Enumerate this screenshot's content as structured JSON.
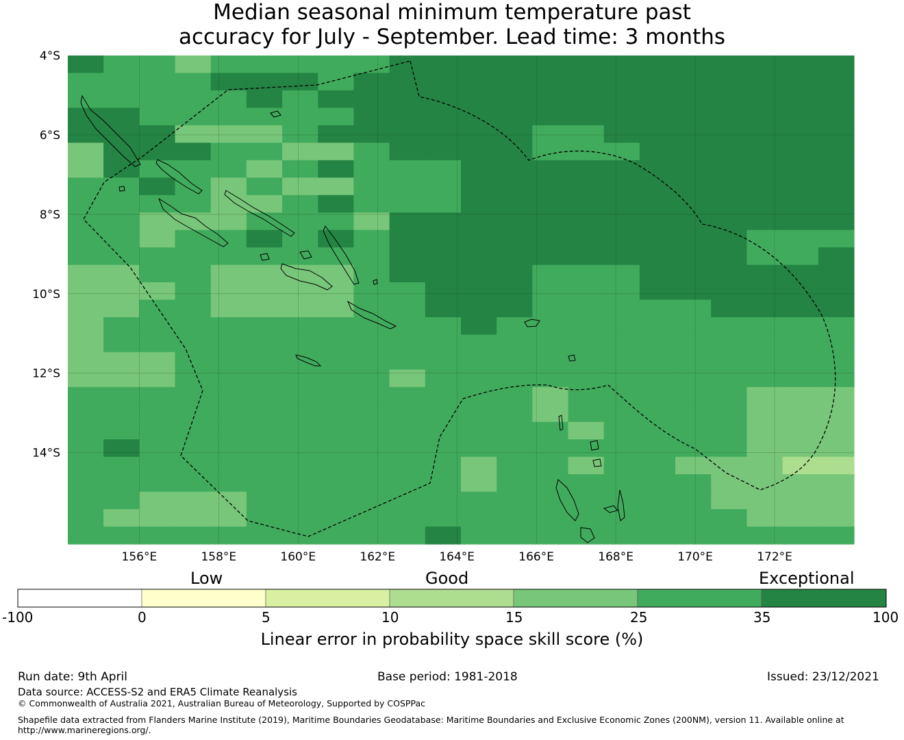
{
  "title": {
    "line1": "Median seasonal minimum temperature past",
    "line2": "accuracy for July - September. Lead time: 3 months"
  },
  "map": {
    "lat_labels": [
      "4°S",
      "6°S",
      "8°S",
      "10°S",
      "12°S",
      "14°S"
    ],
    "lon_labels": [
      "156°E",
      "158°E",
      "160°E",
      "162°E",
      "164°E",
      "166°E",
      "168°E",
      "170°E",
      "172°E"
    ],
    "extent": {
      "lon_min": 154.2,
      "lon_max": 174.0,
      "lat_min": -16.3,
      "lat_max": -4.0
    },
    "grid_cell_deg": 0.833,
    "skill_class_grid": [
      "6554555556666666666666",
      "5555666566666666666666",
      "5555565666666666666666",
      "6655555566666666666666",
      "6664445666666556666666",
      "4666554456666555666666",
      "4655545655566666666666",
      "5565454455566666666666",
      "5555445655566666666666",
      "5544455546666666666666",
      "5545565656666666666555",
      "5555555556666666666556",
      "4455444456666555666666",
      "4445444455666555666666",
      "4455444455666555556666",
      "4555555555565555555555",
      "4555555555555555555555",
      "4445555555555555555555",
      "4445555554555555555555",
      "5555555555555455555444",
      "5555555555555455555444",
      "5555555555555545555444",
      "5655555555555555555444",
      "5555555555545545544433",
      "5555555555545555554444",
      "5544455555555555554444",
      "5444455555555555555444",
      "5555555555655555555555"
    ]
  },
  "colorbar": {
    "words": [
      "Low",
      "Good",
      "Exceptional"
    ],
    "ticks": [
      "-100",
      "0",
      "5",
      "10",
      "15",
      "25",
      "35",
      "100"
    ],
    "colors": [
      "#ffffff",
      "#ffffcc",
      "#d9f0a3",
      "#addd8e",
      "#78c679",
      "#41ab5d",
      "#238443"
    ],
    "label": "Linear error in probability space skill score (%)"
  },
  "footer": {
    "run_date": "Run date: 9th April",
    "base_period": "Base period: 1981-2018",
    "issued": "Issued: 23/12/2021",
    "data_source": "Data source: ACCESS-S2 and ERA5 Climate Reanalysis",
    "copyright": "© Commonwealth of Australia 2021, Australian Bureau of Meteorology, Supported by COSPPac",
    "shapefile_line1": "Shapefile data extracted from Flanders Marine Institute (2019), Maritime Boundaries Geodatabase: Maritime Boundaries and Exclusive Economic Zones (200NM), version 11. Available online at",
    "shapefile_line2": "http://www.marineregions.org/."
  }
}
